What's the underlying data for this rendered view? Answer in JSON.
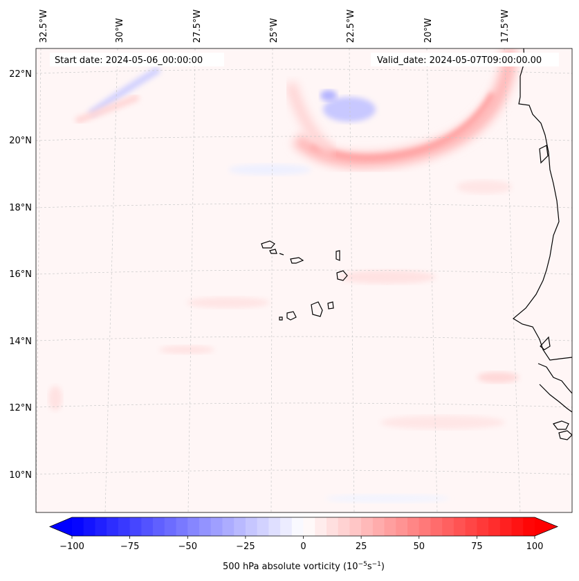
{
  "map": {
    "start_date_label": "Start date: 2024-05-06_00:00:00",
    "valid_date_label": "Valid_date: 2024-05-07T09:00:00.00",
    "longitude_labels": [
      "32.5°W",
      "30°W",
      "27.5°W",
      "25°W",
      "22.5°W",
      "20°W",
      "17.5°W"
    ],
    "latitude_labels": [
      "22°N",
      "20°N",
      "18°N",
      "16°N",
      "14°N",
      "12°N",
      "10°N"
    ],
    "field": "500 hPa absolute vorticity",
    "colors": {
      "negative_max": "#0000ff",
      "positive_max": "#ff0000",
      "neutral": "#ffffff",
      "coastline": "#000000",
      "gridline": "#c8c8c8"
    }
  },
  "colorbar": {
    "min": -100,
    "max": 100,
    "levels": 40,
    "ticks": [
      "−100",
      "−75",
      "−50",
      "−25",
      "0",
      "25",
      "50",
      "75",
      "100"
    ],
    "label_main": "500 hPa absolute vorticity (10",
    "label_exp1": "−5",
    "label_mid": "s",
    "label_exp2": "−1",
    "label_end": ")"
  }
}
